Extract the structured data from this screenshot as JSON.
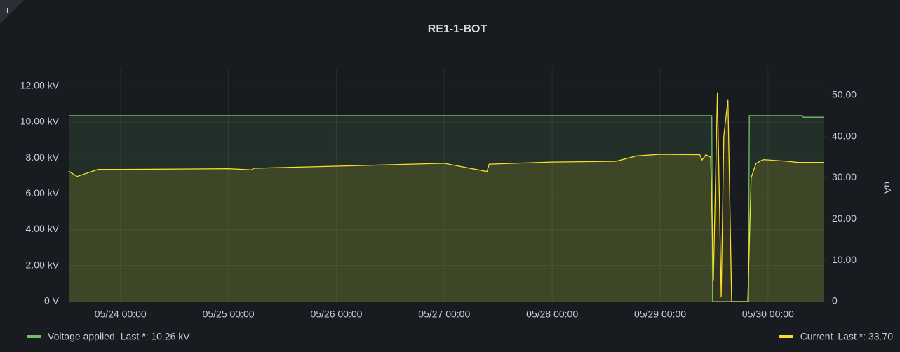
{
  "chart_data": {
    "type": "line",
    "title": "RE1-1-BOT",
    "xlim": [
      "05/23 12:30",
      "05/30 12:30"
    ],
    "xticks": [
      "05/24 00:00",
      "05/25 00:00",
      "05/26 00:00",
      "05/27 00:00",
      "05/28 00:00",
      "05/29 00:00",
      "05/30 00:00"
    ],
    "ylim": [
      0,
      13
    ],
    "yticks": [
      {
        "value": 0,
        "label": "0 V"
      },
      {
        "value": 2,
        "label": "2.00 kV"
      },
      {
        "value": 4,
        "label": "4.00 kV"
      },
      {
        "value": 6,
        "label": "6.00 kV"
      },
      {
        "value": 8,
        "label": "8.00 kV"
      },
      {
        "value": 10,
        "label": "10.00 kV"
      },
      {
        "value": 12,
        "label": "12.00 kV"
      }
    ],
    "y2lim": [
      0,
      56.6
    ],
    "y2ticks": [
      0,
      {
        "value": 10,
        "label": "10.00"
      },
      {
        "value": 20,
        "label": "20.00"
      },
      {
        "value": 30,
        "label": "30.00"
      },
      {
        "value": 40,
        "label": "40.00"
      },
      {
        "value": 50,
        "label": "50.00"
      }
    ],
    "y2_label": "uA",
    "grid": true,
    "series": [
      {
        "name": "Voltage applied",
        "last_label": "Last *: 10.26 kV",
        "color": "#73bf69",
        "x": [
          "05/23 12:30",
          "05/29 11:30",
          "05/29 11:40",
          "05/29 19:40",
          "05/29 19:50",
          "05/30 07:40",
          "05/30 07:50",
          "05/30 12:30"
        ],
        "values": [
          10.35,
          10.35,
          0,
          0,
          10.35,
          10.35,
          10.26,
          10.26
        ]
      },
      {
        "name": "Current",
        "last_label": "Last *: 33.70",
        "color": "#fade2a",
        "axis": "y2",
        "x": [
          "05/23 12:30",
          "05/23 14:20",
          "05/23 19:00",
          "05/24 00:00",
          "05/25 00:00",
          "05/25 05:10",
          "05/25 05:40",
          "05/26 00:00",
          "05/27 00:00",
          "05/27 09:30",
          "05/27 10:00",
          "05/28 00:00",
          "05/28 14:10",
          "05/28 18:50",
          "05/29 00:00",
          "05/29 08:50",
          "05/29 09:20",
          "05/29 10:10",
          "05/29 11:15",
          "05/29 11:50",
          "05/29 12:45",
          "05/29 13:35",
          "05/29 14:10",
          "05/29 15:05",
          "05/29 15:55",
          "05/29 19:30",
          "05/29 20:15",
          "05/29 21:20",
          "05/29 22:55",
          "05/30 04:20",
          "05/30 06:40",
          "05/30 12:30"
        ],
        "values": [
          31.6,
          30.3,
          32.0,
          32.0,
          32.2,
          31.9,
          32.3,
          32.8,
          33.5,
          31.5,
          33.3,
          33.8,
          34.0,
          35.3,
          35.7,
          35.6,
          34.3,
          35.6,
          35.0,
          5.0,
          50.7,
          1.0,
          40.0,
          49.0,
          0,
          0,
          30.0,
          33.5,
          34.4,
          34.0,
          33.7,
          33.7
        ]
      }
    ]
  }
}
